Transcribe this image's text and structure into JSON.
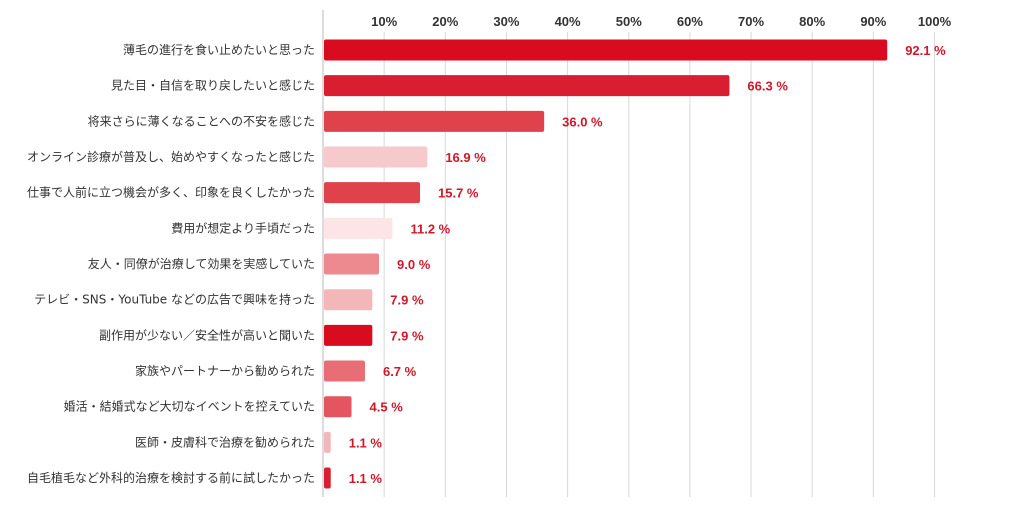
{
  "chart_data": {
    "type": "bar",
    "orientation": "horizontal",
    "categories": [
      "薄毛の進行を食い止めたいと思った",
      "見た目・自信を取り戻したいと感じた",
      "将来さらに薄くなることへの不安を感じた",
      "オンライン診療が普及し、始めやすくなったと感じた",
      "仕事で人前に立つ機会が多く、印象を良くしたかった",
      "費用が想定より手頃だった",
      "友人・同僚が治療して効果を実感していた",
      "テレビ・SNS・YouTube などの広告で興味を持った",
      "副作用が少ない／安全性が高いと聞いた",
      "家族やパートナーから勧められた",
      "婚活・結婚式など大切なイベントを控えていた",
      "医師・皮膚科で治療を勧められた",
      "自毛植毛など外科的治療を検討する前に試したかった"
    ],
    "values": [
      92.1,
      66.3,
      36.0,
      16.9,
      15.7,
      11.2,
      9.0,
      7.9,
      7.9,
      6.7,
      4.5,
      1.1,
      1.1
    ],
    "value_labels": [
      "92.1 %",
      "66.3 %",
      "36.0 %",
      "16.9 %",
      "15.7 %",
      "11.2 %",
      "9.0 %",
      "7.9 %",
      "7.9 %",
      "6.7 %",
      "4.5 %",
      "1.1 %",
      "1.1 %"
    ],
    "bar_colors": [
      "#d90b1f",
      "#d81e30",
      "#e0424b",
      "#f6c9cc",
      "#e0424b",
      "#fde4e6",
      "#ec8a90",
      "#f3b7ba",
      "#d90b1f",
      "#e86d74",
      "#e35560",
      "#f3b7ba",
      "#d81e30"
    ],
    "x_ticks": [
      "10%",
      "20%",
      "30%",
      "40%",
      "50%",
      "60%",
      "70%",
      "80%",
      "90%",
      "100%"
    ],
    "xlim": [
      0,
      100
    ],
    "grid": true,
    "label_color": "#d0172a"
  }
}
